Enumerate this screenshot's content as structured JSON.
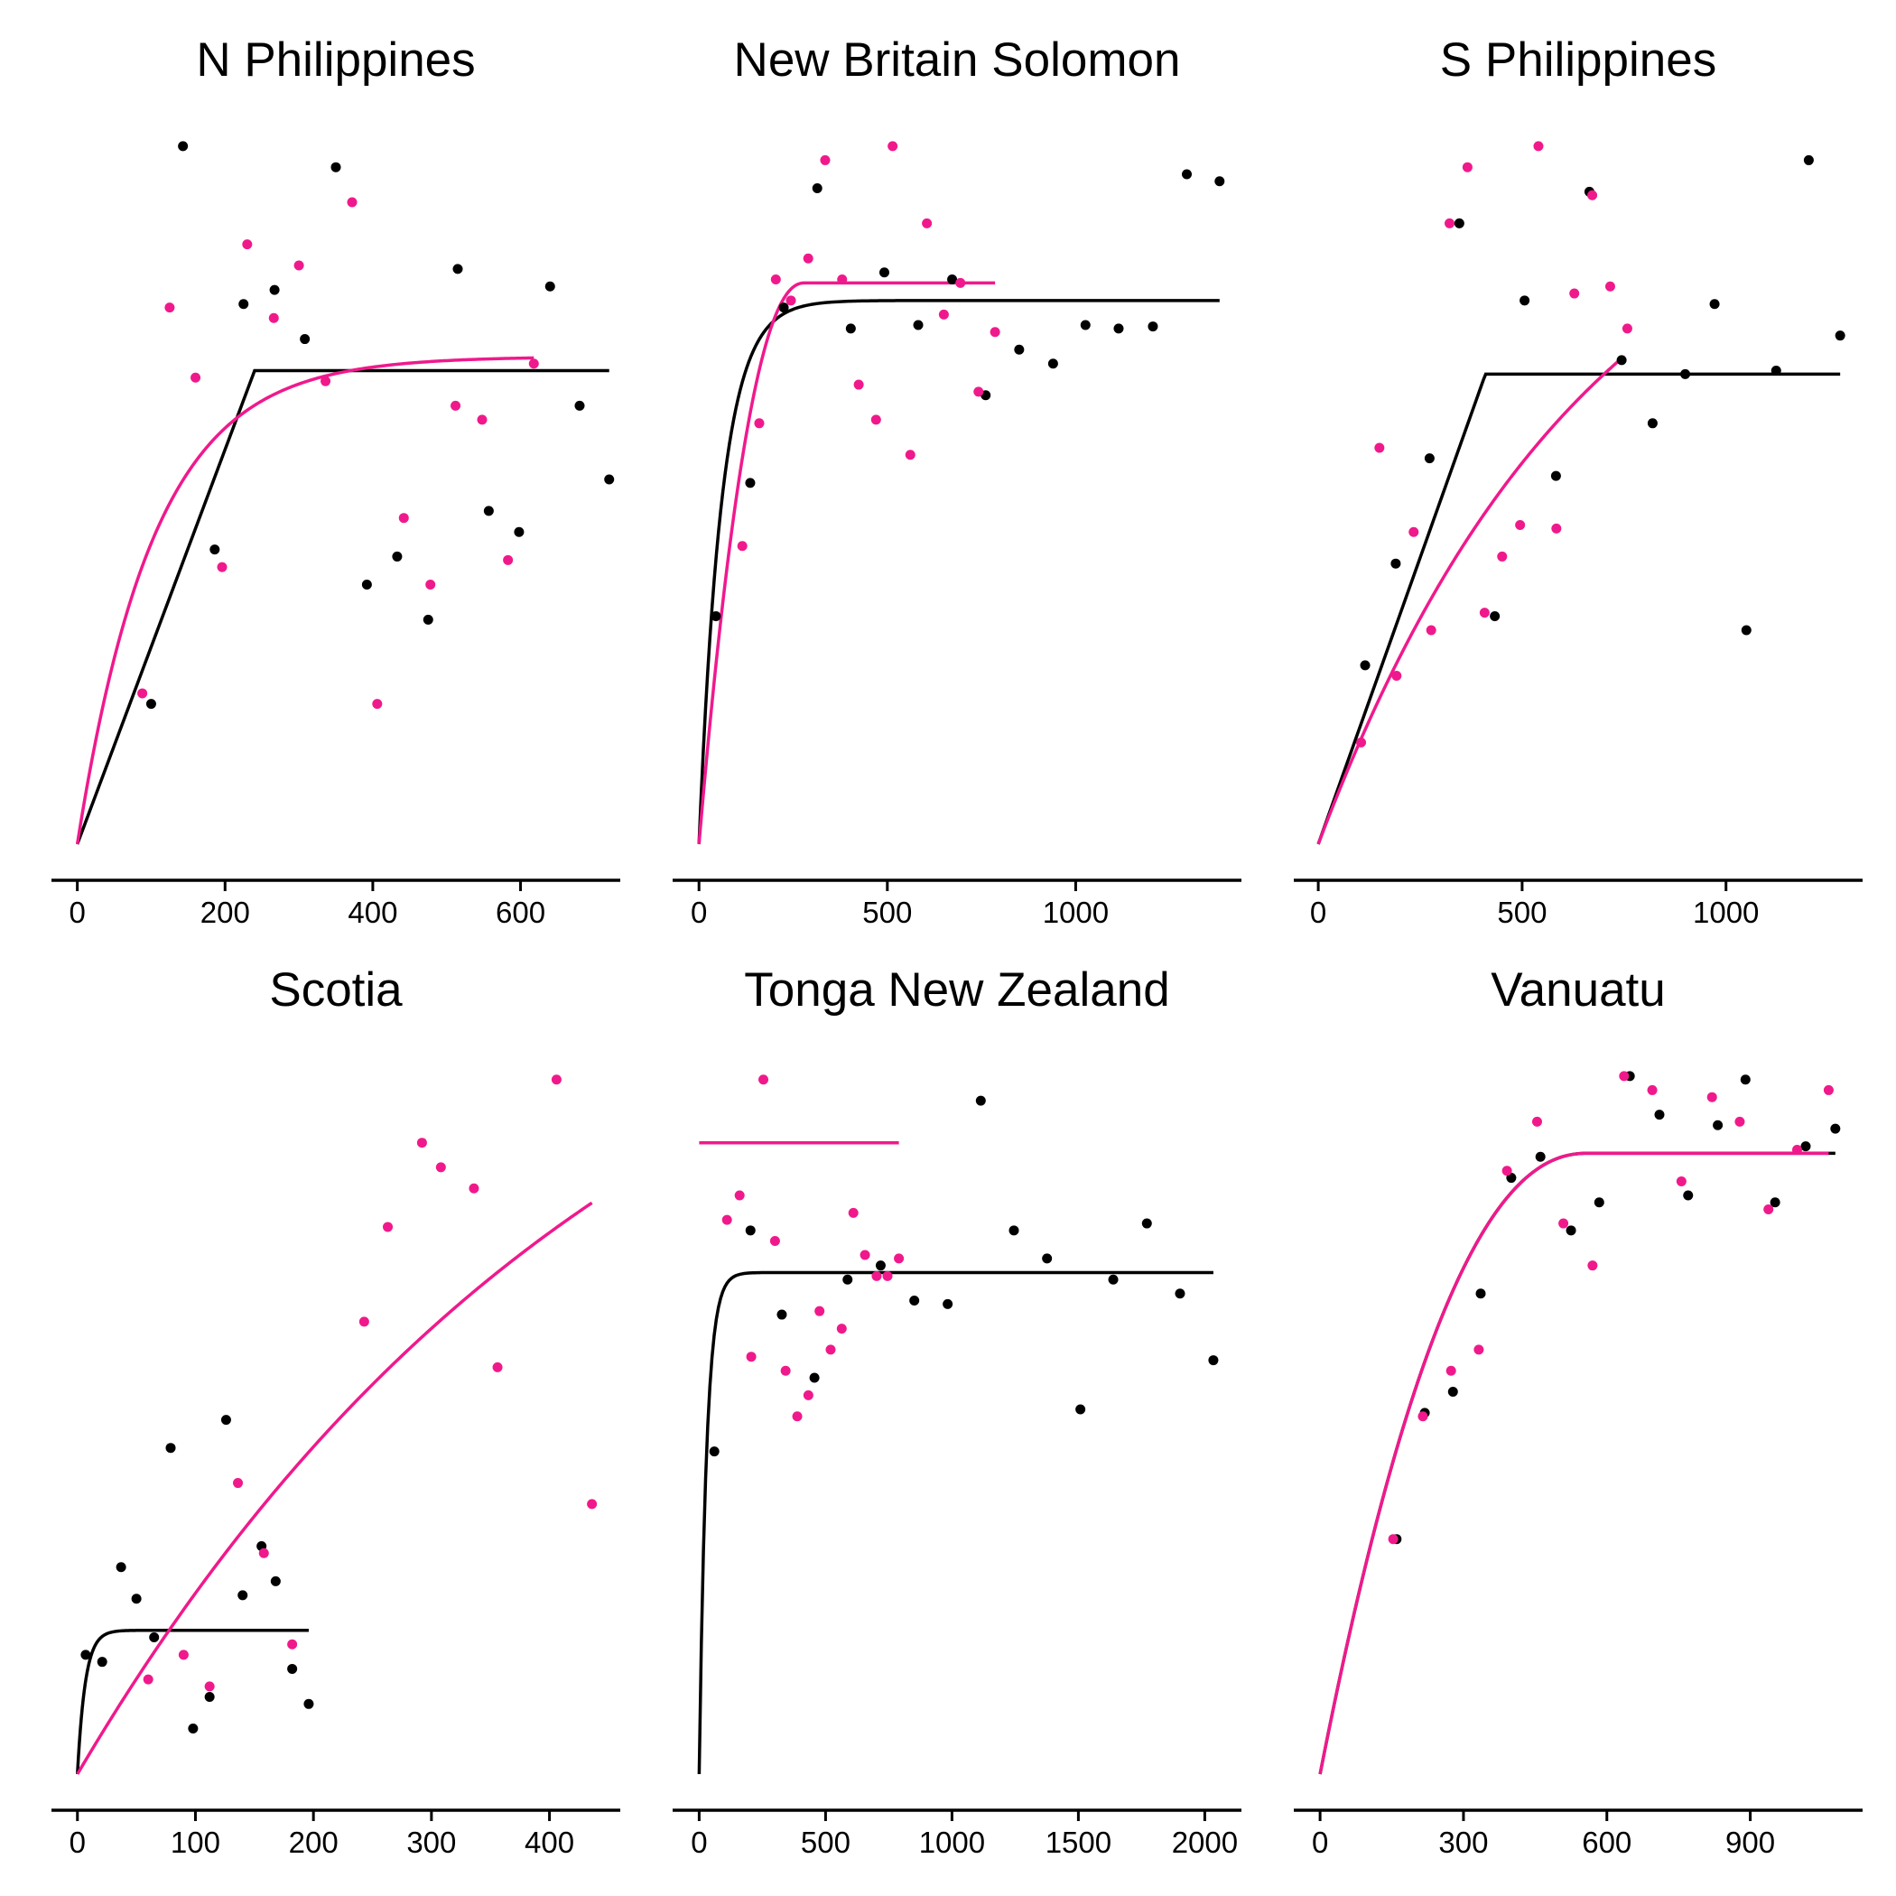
{
  "colors": {
    "black_series": "#000000",
    "pink_series": "#f0198c"
  },
  "chart_data": [
    {
      "type": "scatter",
      "title": "N Philippines",
      "xlim": [
        -35,
        735
      ],
      "ylim": [
        0,
        1
      ],
      "xticks": [
        0,
        200,
        400,
        600
      ],
      "series": [
        {
          "color": "black",
          "points": [
            [
              100,
              0.2
            ],
            [
              143,
              0.995
            ],
            [
              186,
              0.42
            ],
            [
              225,
              0.77
            ],
            [
              267,
              0.79
            ],
            [
              308,
              0.72
            ],
            [
              350,
              0.965
            ],
            [
              392,
              0.37
            ],
            [
              433,
              0.41
            ],
            [
              475,
              0.32
            ],
            [
              515,
              0.82
            ],
            [
              557,
              0.475
            ],
            [
              598,
              0.445
            ],
            [
              640,
              0.795
            ],
            [
              680,
              0.625
            ],
            [
              720,
              0.52
            ]
          ],
          "curve": {
            "x_end": 720,
            "plateau": 0.675,
            "x_plateau": 240,
            "shape": "linear"
          }
        },
        {
          "color": "pink",
          "points": [
            [
              88,
              0.215
            ],
            [
              125,
              0.765
            ],
            [
              160,
              0.665
            ],
            [
              196,
              0.395
            ],
            [
              230,
              0.855
            ],
            [
              266,
              0.75
            ],
            [
              300,
              0.825
            ],
            [
              336,
              0.66
            ],
            [
              372,
              0.915
            ],
            [
              406,
              0.2
            ],
            [
              442,
              0.465
            ],
            [
              478,
              0.37
            ],
            [
              512,
              0.625
            ],
            [
              548,
              0.605
            ],
            [
              583,
              0.405
            ],
            [
              618,
              0.685
            ]
          ],
          "curve": {
            "x_end": 618,
            "plateau": 0.695,
            "rate": 0.0096,
            "shape": "exponential"
          }
        }
      ]
    },
    {
      "type": "scatter",
      "title": "New Britain Solomon",
      "xlim": [
        -70,
        1440
      ],
      "ylim": [
        0,
        1
      ],
      "xticks": [
        0,
        500,
        1000
      ],
      "series": [
        {
          "color": "black",
          "points": [
            [
              45,
              0.325
            ],
            [
              136,
              0.515
            ],
            [
              225,
              0.765
            ],
            [
              314,
              0.935
            ],
            [
              403,
              0.735
            ],
            [
              492,
              0.815
            ],
            [
              582,
              0.74
            ],
            [
              672,
              0.805
            ],
            [
              761,
              0.64
            ],
            [
              850,
              0.705
            ],
            [
              940,
              0.685
            ],
            [
              1026,
              0.74
            ],
            [
              1114,
              0.735
            ],
            [
              1205,
              0.738
            ],
            [
              1295,
              0.955
            ],
            [
              1382,
              0.945
            ]
          ],
          "curve": {
            "x_end": 1382,
            "plateau": 0.775,
            "rate": 0.0165,
            "shape": "exponential"
          }
        },
        {
          "color": "pink",
          "points": [
            [
              115,
              0.425
            ],
            [
              160,
              0.6
            ],
            [
              204,
              0.805
            ],
            [
              244,
              0.775
            ],
            [
              290,
              0.835
            ],
            [
              335,
              0.975
            ],
            [
              380,
              0.805
            ],
            [
              424,
              0.655
            ],
            [
              470,
              0.605
            ],
            [
              514,
              0.995
            ],
            [
              561,
              0.555
            ],
            [
              605,
              0.885
            ],
            [
              650,
              0.755
            ],
            [
              694,
              0.8
            ],
            [
              742,
              0.645
            ],
            [
              786,
              0.73
            ]
          ],
          "curve": {
            "x_end": 786,
            "plateau": 0.8,
            "x_plateau": 280,
            "shape": "smooth"
          }
        }
      ]
    },
    {
      "type": "scatter",
      "title": "S Philippines",
      "xlim": [
        -60,
        1335
      ],
      "ylim": [
        0,
        1
      ],
      "xticks": [
        0,
        500,
        1000
      ],
      "series": [
        {
          "color": "black",
          "points": [
            [
              115,
              0.255
            ],
            [
              190,
              0.4
            ],
            [
              273,
              0.55
            ],
            [
              346,
              0.885
            ],
            [
              433,
              0.325
            ],
            [
              506,
              0.775
            ],
            [
              583,
              0.525
            ],
            [
              665,
              0.93
            ],
            [
              744,
              0.69
            ],
            [
              820,
              0.6
            ],
            [
              900,
              0.67
            ],
            [
              972,
              0.77
            ],
            [
              1050,
              0.305
            ],
            [
              1123,
              0.675
            ],
            [
              1203,
              0.975
            ],
            [
              1280,
              0.725
            ]
          ],
          "curve": {
            "x_end": 1280,
            "plateau": 0.67,
            "x_plateau": 410,
            "shape": "linear"
          }
        },
        {
          "color": "pink",
          "points": [
            [
              105,
              0.145
            ],
            [
              150,
              0.565
            ],
            [
              192,
              0.24
            ],
            [
              234,
              0.445
            ],
            [
              277,
              0.305
            ],
            [
              322,
              0.885
            ],
            [
              366,
              0.965
            ],
            [
              408,
              0.33
            ],
            [
              451,
              0.41
            ],
            [
              495,
              0.455
            ],
            [
              540,
              0.995
            ],
            [
              584,
              0.45
            ],
            [
              628,
              0.785
            ],
            [
              672,
              0.925
            ],
            [
              716,
              0.795
            ],
            [
              758,
              0.735
            ]
          ],
          "curve": {
            "x_end": 748,
            "plateau": 1.03,
            "rate": 0.0015,
            "shape": "exponential"
          }
        }
      ]
    },
    {
      "type": "scatter",
      "title": "Scotia",
      "xlim": [
        -22,
        460
      ],
      "ylim": [
        0,
        1
      ],
      "xticks": [
        0,
        100,
        200,
        300,
        400
      ],
      "series": [
        {
          "color": "black",
          "points": [
            [
              7,
              0.17
            ],
            [
              21,
              0.16
            ],
            [
              37,
              0.295
            ],
            [
              50,
              0.25
            ],
            [
              65,
              0.195
            ],
            [
              79,
              0.465
            ],
            [
              98,
              0.065
            ],
            [
              112,
              0.11
            ],
            [
              126,
              0.505
            ],
            [
              140,
              0.255
            ],
            [
              156,
              0.325
            ],
            [
              168,
              0.275
            ],
            [
              182,
              0.15
            ],
            [
              196,
              0.1
            ]
          ],
          "curve": {
            "x_end": 196,
            "plateau": 0.205,
            "rate": 0.15,
            "shape": "exponential"
          }
        },
        {
          "color": "pink",
          "points": [
            [
              60,
              0.135
            ],
            [
              90,
              0.17
            ],
            [
              112,
              0.125
            ],
            [
              136,
              0.415
            ],
            [
              158,
              0.315
            ],
            [
              182,
              0.185
            ],
            [
              243,
              0.645
            ],
            [
              263,
              0.78
            ],
            [
              292,
              0.9
            ],
            [
              308,
              0.865
            ],
            [
              336,
              0.835
            ],
            [
              356,
              0.58
            ],
            [
              406,
              0.99
            ],
            [
              436,
              0.385
            ]
          ],
          "curve": {
            "x_end": 436,
            "plateau": 1.35,
            "rate": 0.00212,
            "shape": "exponential"
          }
        }
      ]
    },
    {
      "type": "scatter",
      "title": "Tonga New Zealand",
      "xlim": [
        -105,
        2145
      ],
      "ylim": [
        0,
        1
      ],
      "xticks": [
        0,
        500,
        1000,
        1500,
        2000
      ],
      "series": [
        {
          "color": "black",
          "points": [
            [
              60,
              0.46
            ],
            [
              203,
              0.775
            ],
            [
              327,
              0.655
            ],
            [
              456,
              0.565
            ],
            [
              587,
              0.705
            ],
            [
              718,
              0.725
            ],
            [
              851,
              0.675
            ],
            [
              983,
              0.67
            ],
            [
              1114,
              0.96
            ],
            [
              1245,
              0.775
            ],
            [
              1376,
              0.735
            ],
            [
              1508,
              0.52
            ],
            [
              1638,
              0.705
            ],
            [
              1771,
              0.785
            ],
            [
              1902,
              0.685
            ],
            [
              2034,
              0.59
            ]
          ],
          "curve": {
            "x_end": 2034,
            "plateau": 0.715,
            "rate": 0.035,
            "shape": "exponential"
          }
        },
        {
          "color": "pink",
          "points": [
            [
              110,
              0.79
            ],
            [
              160,
              0.825
            ],
            [
              206,
              0.595
            ],
            [
              254,
              0.99
            ],
            [
              300,
              0.76
            ],
            [
              342,
              0.575
            ],
            [
              388,
              0.51
            ],
            [
              432,
              0.54
            ],
            [
              476,
              0.66
            ],
            [
              520,
              0.605
            ],
            [
              564,
              0.635
            ],
            [
              610,
              0.8
            ],
            [
              656,
              0.74
            ],
            [
              702,
              0.71
            ],
            [
              745,
              0.71
            ],
            [
              790,
              0.735
            ]
          ],
          "curve": {
            "x_end": 790,
            "plateau": 0.9,
            "shape": "flat"
          }
        }
      ]
    },
    {
      "type": "scatter",
      "title": "Vanuatu",
      "xlim": [
        -55,
        1135
      ],
      "ylim": [
        0,
        1
      ],
      "xticks": [
        0,
        300,
        600,
        900
      ],
      "series": [
        {
          "color": "black",
          "points": [
            [
              160,
              0.335
            ],
            [
              219,
              0.515
            ],
            [
              278,
              0.545
            ],
            [
              336,
              0.685
            ],
            [
              400,
              0.85
            ],
            [
              461,
              0.88
            ],
            [
              525,
              0.775
            ],
            [
              584,
              0.815
            ],
            [
              648,
              0.995
            ],
            [
              710,
              0.94
            ],
            [
              770,
              0.825
            ],
            [
              832,
              0.925
            ],
            [
              890,
              0.99
            ],
            [
              952,
              0.815
            ],
            [
              1016,
              0.895
            ],
            [
              1078,
              0.92
            ]
          ],
          "curve": {
            "x_end": 1078,
            "plateau": 0.885,
            "x_plateau": 560,
            "shape": "smooth"
          }
        },
        {
          "color": "pink",
          "points": [
            [
              153,
              0.335
            ],
            [
              215,
              0.51
            ],
            [
              274,
              0.575
            ],
            [
              332,
              0.605
            ],
            [
              391,
              0.86
            ],
            [
              454,
              0.93
            ],
            [
              509,
              0.785
            ],
            [
              570,
              0.725
            ],
            [
              636,
              0.995
            ],
            [
              695,
              0.975
            ],
            [
              756,
              0.845
            ],
            [
              820,
              0.965
            ],
            [
              878,
              0.93
            ],
            [
              938,
              0.805
            ],
            [
              998,
              0.89
            ],
            [
              1064,
              0.975
            ]
          ],
          "curve": {
            "x_end": 1064,
            "plateau": 0.885,
            "x_plateau": 560,
            "shape": "smooth"
          }
        }
      ]
    }
  ]
}
